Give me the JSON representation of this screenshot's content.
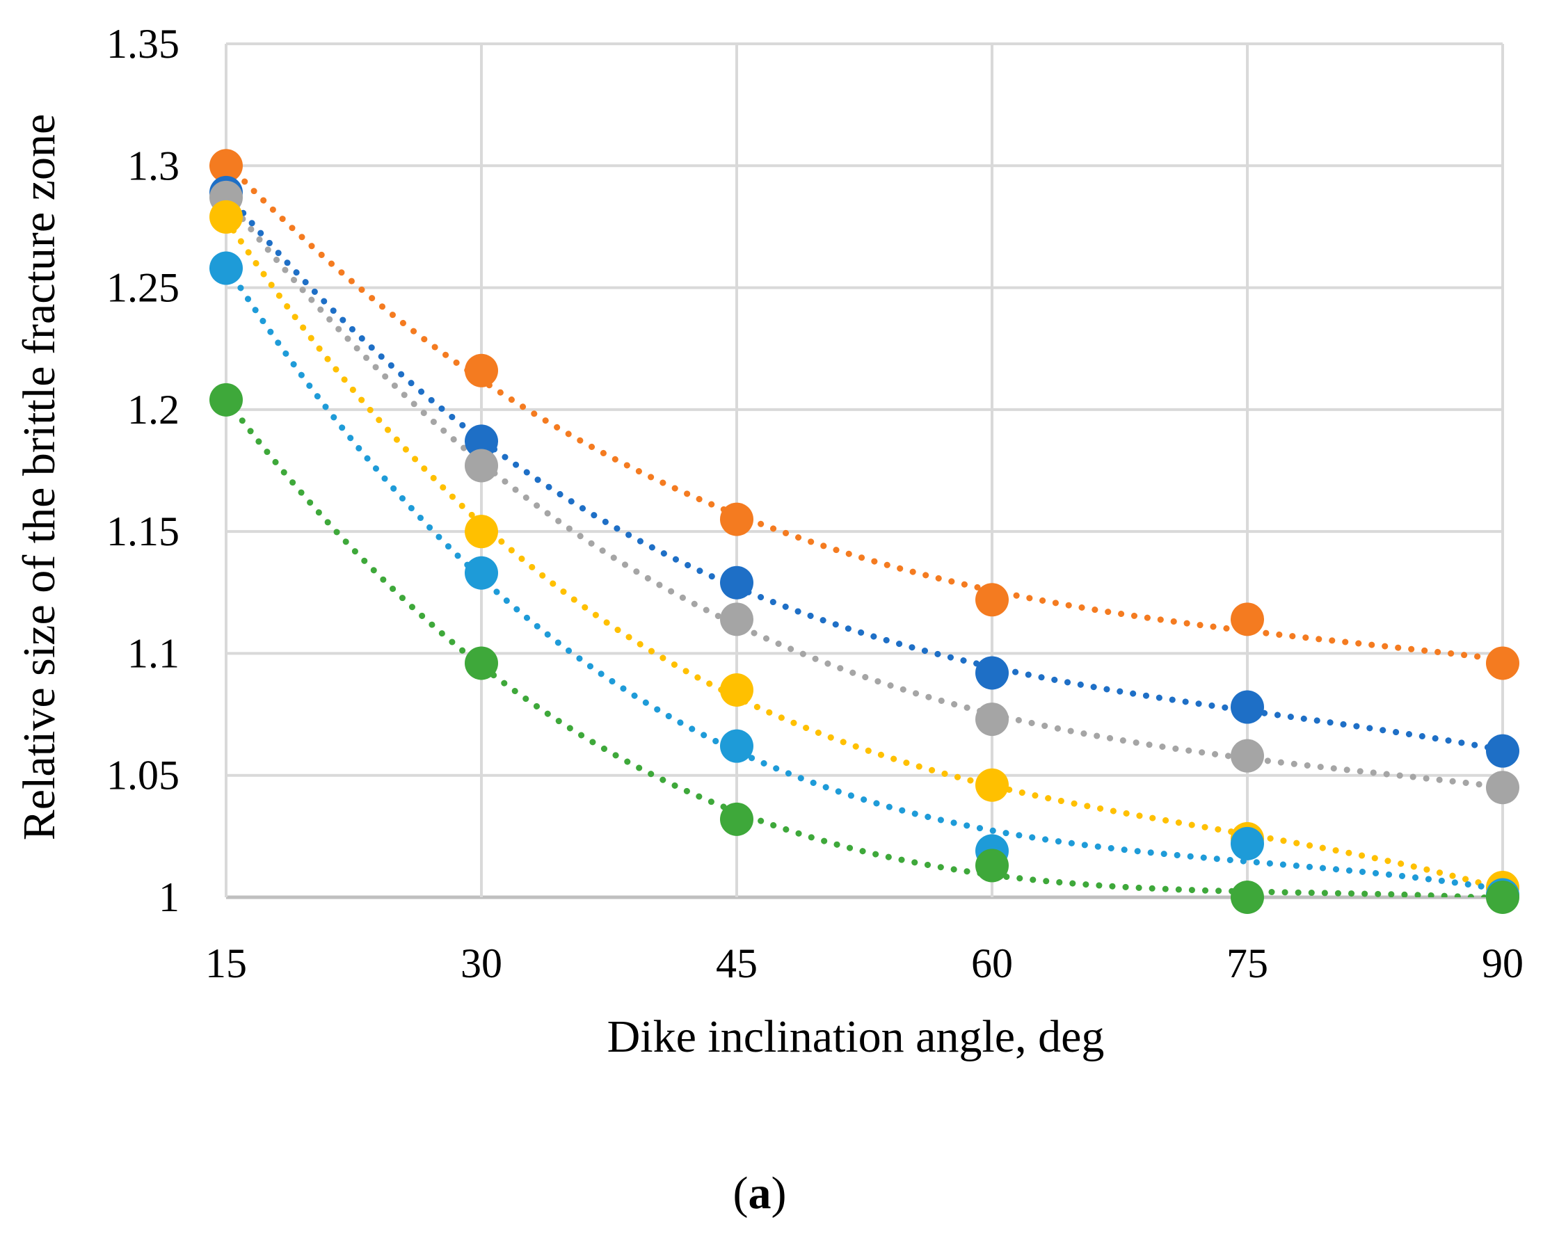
{
  "chart_data": {
    "type": "scatter",
    "title": "",
    "xlabel": "Dike inclination angle, deg",
    "ylabel": "Relative size of the brittle fracture zone",
    "panel_label": {
      "open": "(",
      "letter": "a",
      "close": ")"
    },
    "xlim": [
      15,
      90
    ],
    "ylim": [
      1,
      1.35
    ],
    "x": [
      15,
      30,
      45,
      60,
      75,
      90
    ],
    "x_tick_labels": [
      "15",
      "30",
      "45",
      "60",
      "75",
      "90"
    ],
    "y_ticks": [
      1,
      1.05,
      1.1,
      1.15,
      1.2,
      1.25,
      1.3,
      1.35
    ],
    "y_tick_labels": [
      "1",
      "1.05",
      "1.1",
      "1.15",
      "1.2",
      "1.25",
      "1.3",
      "1.35"
    ],
    "grid": true,
    "legend": "none",
    "trendline": "dotted polynomial fit per series",
    "series": [
      {
        "name": "orange",
        "color": "#F47B20",
        "values": [
          1.3,
          1.216,
          1.155,
          1.122,
          1.114,
          1.096
        ]
      },
      {
        "name": "dark-blue",
        "color": "#1E6FC6",
        "values": [
          1.289,
          1.187,
          1.129,
          1.092,
          1.078,
          1.06
        ]
      },
      {
        "name": "gray",
        "color": "#A5A5A5",
        "values": [
          1.287,
          1.177,
          1.114,
          1.073,
          1.058,
          1.045
        ]
      },
      {
        "name": "yellow",
        "color": "#FFC000",
        "values": [
          1.279,
          1.15,
          1.085,
          1.046,
          1.024,
          1.004
        ]
      },
      {
        "name": "light-blue",
        "color": "#1E9BD8",
        "values": [
          1.258,
          1.133,
          1.062,
          1.019,
          1.022,
          1.001
        ]
      },
      {
        "name": "green",
        "color": "#3EA83A",
        "values": [
          1.204,
          1.096,
          1.032,
          1.013,
          1.0,
          1.0
        ]
      }
    ]
  }
}
